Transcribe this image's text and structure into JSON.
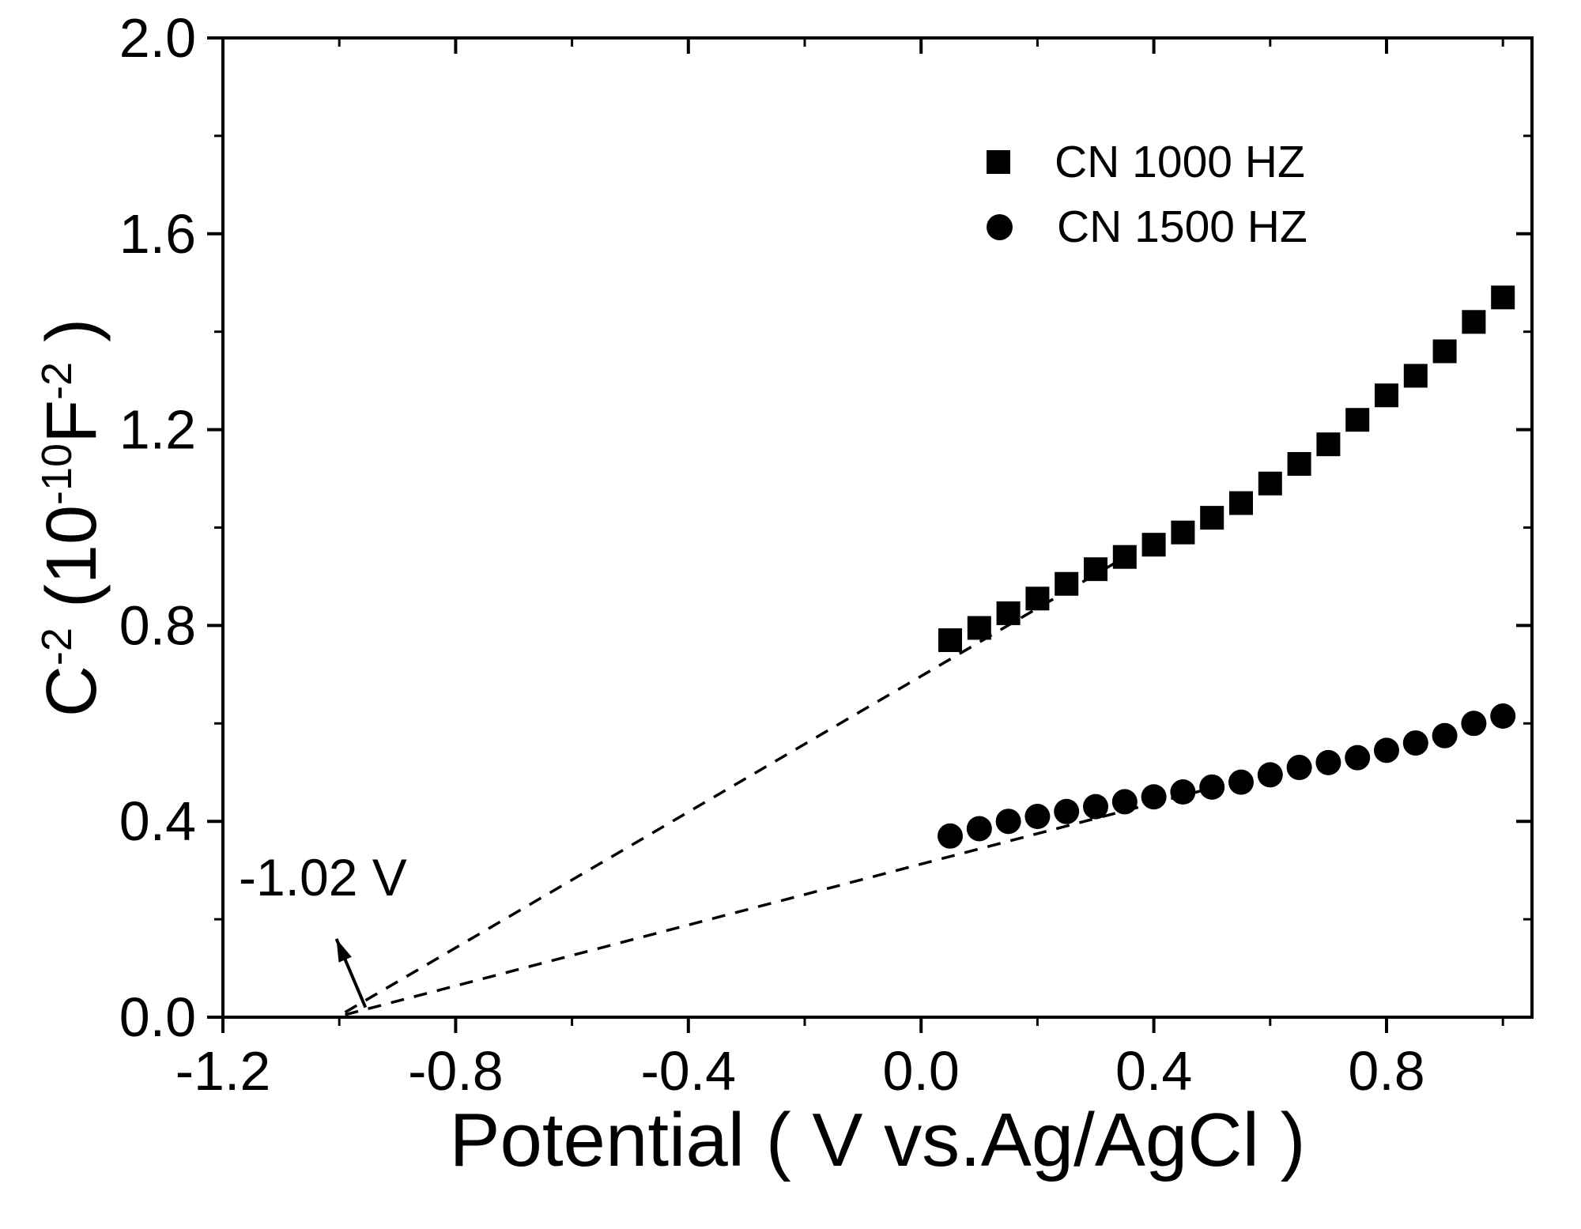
{
  "chart_data": {
    "type": "scatter",
    "title": "",
    "xlabel": "Potential ( V vs.Ag/AgCl )",
    "ylabel": "C-2 (10-10F-2)",
    "ylabel_parts": [
      {
        "text": "C",
        "sup": false
      },
      {
        "text": "-2",
        "sup": true
      },
      {
        "text": " (10",
        "sup": false
      },
      {
        "text": "-10",
        "sup": true
      },
      {
        "text": "F",
        "sup": false
      },
      {
        "text": "-2",
        "sup": true
      },
      {
        "text": " )",
        "sup": false
      }
    ],
    "xlim": [
      -1.2,
      1.05
    ],
    "ylim": [
      0.0,
      2.0
    ],
    "xticks": [
      -1.2,
      -0.8,
      -0.4,
      0.0,
      0.4,
      0.8
    ],
    "xtick_labels": [
      "-1.2",
      "-0.8",
      "-0.4",
      "0.0",
      "0.4",
      "0.8"
    ],
    "yticks": [
      0.0,
      0.4,
      0.8,
      1.2,
      1.6,
      2.0
    ],
    "ytick_labels": [
      "0.0",
      "0.4",
      "0.8",
      "1.2",
      "1.6",
      "2.0"
    ],
    "minor_xtick_step": 0.2,
    "minor_ytick_step": 0.2,
    "grid": false,
    "colors": {
      "foreground": "#000000",
      "background": "#ffffff"
    },
    "legend": {
      "position": "upper-right",
      "entries": [
        {
          "label": "CN 1000 HZ",
          "marker": "square"
        },
        {
          "label": "CN 1500 HZ",
          "marker": "circle"
        }
      ]
    },
    "series": [
      {
        "name": "CN 1000 HZ",
        "marker": "square",
        "x": [
          0.05,
          0.1,
          0.15,
          0.2,
          0.25,
          0.3,
          0.35,
          0.4,
          0.45,
          0.5,
          0.55,
          0.6,
          0.65,
          0.7,
          0.75,
          0.8,
          0.85,
          0.9,
          0.95,
          1.0
        ],
        "y": [
          0.77,
          0.795,
          0.825,
          0.855,
          0.885,
          0.915,
          0.94,
          0.965,
          0.99,
          1.02,
          1.05,
          1.09,
          1.13,
          1.17,
          1.22,
          1.27,
          1.31,
          1.36,
          1.42,
          1.47
        ]
      },
      {
        "name": "CN 1500 HZ",
        "marker": "circle",
        "x": [
          0.05,
          0.1,
          0.15,
          0.2,
          0.25,
          0.3,
          0.35,
          0.4,
          0.45,
          0.5,
          0.55,
          0.6,
          0.65,
          0.7,
          0.75,
          0.8,
          0.85,
          0.9,
          0.95,
          1.0
        ],
        "y": [
          0.37,
          0.385,
          0.4,
          0.41,
          0.42,
          0.43,
          0.44,
          0.45,
          0.46,
          0.47,
          0.48,
          0.495,
          0.51,
          0.52,
          0.53,
          0.545,
          0.56,
          0.575,
          0.6,
          0.615
        ]
      }
    ],
    "fit_lines": [
      {
        "x1": -0.99,
        "y1": 0.01,
        "x2": 0.38,
        "y2": 0.96,
        "style": "dashed"
      },
      {
        "x1": -0.99,
        "y1": 0.005,
        "x2": 0.49,
        "y2": 0.465,
        "style": "dashed"
      }
    ],
    "annotation": {
      "text": "-1.02 V",
      "text_x": -1.16,
      "text_y": 0.27,
      "arrow_from_x": -0.955,
      "arrow_from_y": 0.02,
      "arrow_to_x": -1.005,
      "arrow_to_y": 0.16
    },
    "flat_band_potential": "-1.02 V"
  }
}
